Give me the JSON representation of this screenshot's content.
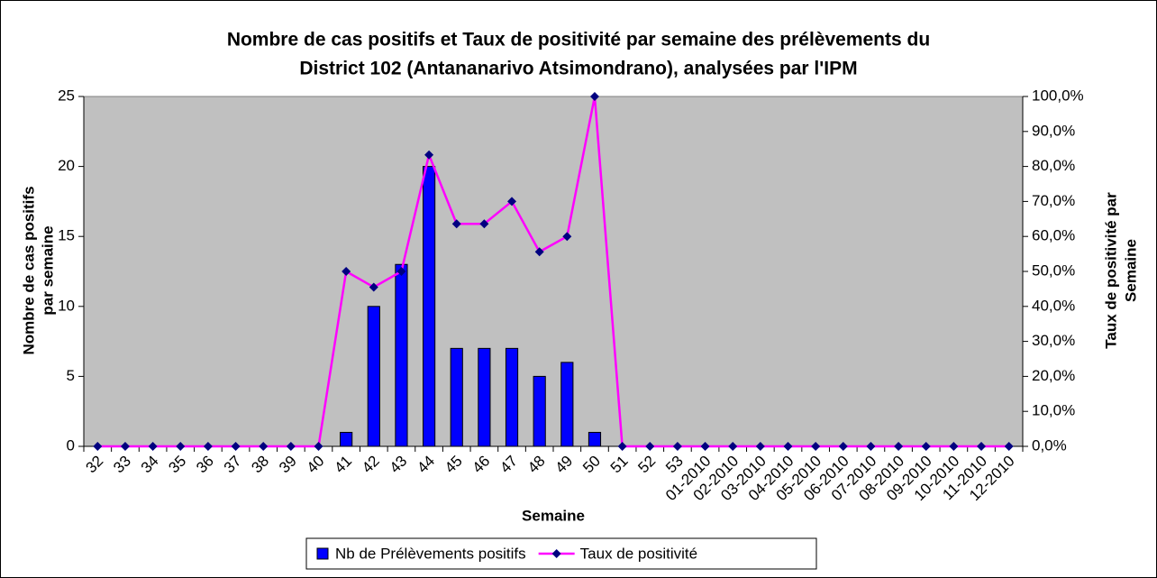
{
  "chart_data": {
    "type": "bar_line",
    "title": [
      "Nombre de cas positifs et Taux de positivité par semaine des prélèvements du",
      "District 102 (Antananarivo Atsimondrano), analysées par l'IPM"
    ],
    "x_label": "Semaine",
    "y_label": [
      "Nombre de cas positifs",
      "par semaine"
    ],
    "y2_label": [
      "Taux de positivité par",
      "Semaine"
    ],
    "categories": [
      "32",
      "33",
      "34",
      "35",
      "36",
      "37",
      "38",
      "39",
      "40",
      "41",
      "42",
      "43",
      "44",
      "45",
      "46",
      "47",
      "48",
      "49",
      "50",
      "51",
      "52",
      "53",
      "01-2010",
      "02-2010",
      "03-2010",
      "04-2010",
      "05-2010",
      "06-2010",
      "07-2010",
      "08-2010",
      "09-2010",
      "10-2010",
      "11-2010",
      "12-2010"
    ],
    "series": [
      {
        "name": "Nb de Prélèvements positifs",
        "type": "bar",
        "color": "#0000ff",
        "values": [
          0,
          0,
          0,
          0,
          0,
          0,
          0,
          0,
          0,
          1,
          10,
          13,
          20,
          7,
          7,
          7,
          5,
          6,
          1,
          0,
          0,
          0,
          0,
          0,
          0,
          0,
          0,
          0,
          0,
          0,
          0,
          0,
          0,
          0
        ]
      },
      {
        "name": "Taux de positivité",
        "type": "line",
        "axis": "y2",
        "color": "#ff00ff",
        "marker_color": "#000080",
        "values": [
          0,
          0,
          0,
          0,
          0,
          0,
          0,
          0,
          0,
          50,
          45.5,
          50,
          83.3,
          63.6,
          63.6,
          70,
          55.6,
          60,
          100,
          0,
          0,
          0,
          0,
          0,
          0,
          0,
          0,
          0,
          0,
          0,
          0,
          0,
          0,
          0
        ]
      }
    ],
    "ylim": [
      0,
      25
    ],
    "yticks": [
      0,
      5,
      10,
      15,
      20,
      25
    ],
    "y2lim": [
      0,
      100
    ],
    "y2ticks": [
      {
        "value": 0,
        "label": "0,0%"
      },
      {
        "value": 10,
        "label": "10,0%"
      },
      {
        "value": 20,
        "label": "20,0%"
      },
      {
        "value": 30,
        "label": "30,0%"
      },
      {
        "value": 40,
        "label": "40,0%"
      },
      {
        "value": 50,
        "label": "50,0%"
      },
      {
        "value": 60,
        "label": "60,0%"
      },
      {
        "value": 70,
        "label": "70,0%"
      },
      {
        "value": 80,
        "label": "80,0%"
      },
      {
        "value": 90,
        "label": "90,0%"
      },
      {
        "value": 100,
        "label": "100,0%"
      }
    ],
    "grid": false,
    "plot_background": "#c0c0c0",
    "legend": "bottom"
  }
}
